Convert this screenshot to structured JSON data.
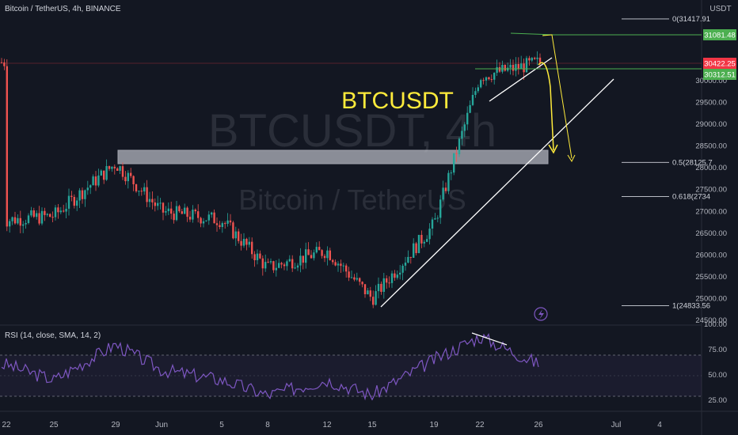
{
  "header": {
    "symbol_line": "Bitcoin / TetherUS, 4h, BINANCE"
  },
  "watermark": {
    "ticker": "BTCUSDT, 4h",
    "name": "Bitcoin / TetherUS"
  },
  "annotation": {
    "label": "BTCUSDT"
  },
  "price_axis": {
    "currency": "USDT",
    "ticks": [
      "30000.00",
      "29500.00",
      "29000.00",
      "28500.00",
      "28000.00",
      "27500.00",
      "27000.00",
      "26500.00",
      "26000.00",
      "25500.00",
      "25000.00",
      "24500.00"
    ],
    "badges": [
      {
        "text": "31081.48",
        "color": "#4caf50"
      },
      {
        "text": "30422.25",
        "color": "#f23645"
      },
      {
        "text": "30312.51",
        "color": "#4caf50"
      }
    ]
  },
  "fib_levels": [
    {
      "label": "0(31417.91",
      "price": 31417.91
    },
    {
      "label": "0.5(28125.7",
      "price": 28125.7
    },
    {
      "label": "0.618(2734",
      "price": 27343
    },
    {
      "label": "1(24833.56",
      "price": 24833.56
    }
  ],
  "rsi": {
    "header": "RSI (14, close, SMA, 14, 2)",
    "ticks": [
      "100.00",
      "75.00",
      "50.00",
      "25.00"
    ],
    "band": [
      30,
      70
    ]
  },
  "time_axis": {
    "labels": [
      "22",
      "25",
      "29",
      "Jun",
      "5",
      "8",
      "12",
      "15",
      "19",
      "22",
      "26",
      "Jul",
      "4"
    ]
  },
  "colors": {
    "up": "#26a69a",
    "down": "#ef5350",
    "rsi_line": "#7e57c2",
    "annotation": "#ffeb3b"
  },
  "chart_data": {
    "type": "candlestick",
    "title": "Bitcoin / TetherUS, 4h, BINANCE",
    "ylim": [
      24500,
      31500
    ],
    "x": [
      "22",
      "25",
      "29",
      "Jun",
      "5",
      "8",
      "12",
      "15",
      "19",
      "22",
      "26"
    ],
    "close": [
      26800,
      26900,
      28100,
      27000,
      26800,
      25700,
      26100,
      25000,
      26700,
      30100,
      30422
    ],
    "rsi_values": [
      60,
      45,
      80,
      55,
      45,
      30,
      45,
      30,
      65,
      88,
      60
    ],
    "zone": [
      28150,
      28450
    ]
  }
}
